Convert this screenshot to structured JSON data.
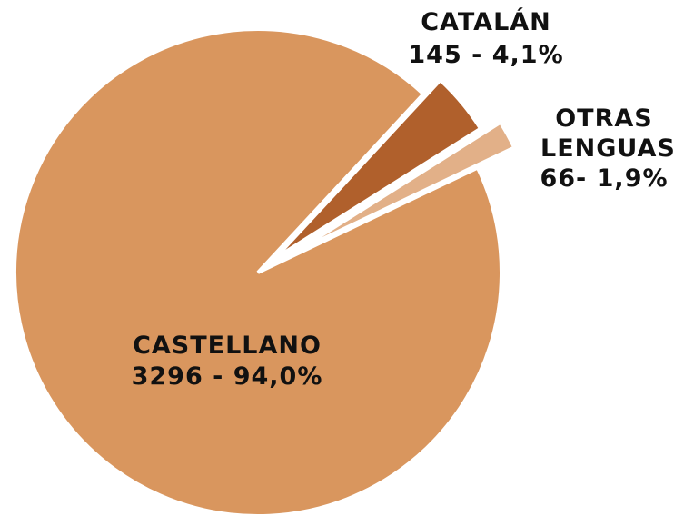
{
  "chart_data": {
    "type": "pie",
    "categories": [
      "CASTELLANO",
      "CATALÁN",
      "OTRAS LENGUAS"
    ],
    "values": [
      3296,
      145,
      66
    ],
    "value_labels": [
      "3296 - 94,0%",
      "145 - 4,1%",
      "66- 1,9%"
    ],
    "colors": [
      "#d9965e",
      "#b0602c",
      "#e2b088"
    ]
  }
}
